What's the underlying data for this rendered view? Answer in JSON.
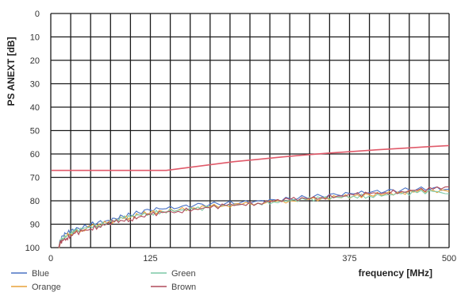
{
  "chart_data": {
    "type": "line",
    "title": "",
    "xlabel": "frequency [MHz]",
    "ylabel": "PS ANEXT [dB]",
    "xlim": [
      0,
      500
    ],
    "ylim": [
      0,
      100
    ],
    "y_inverted": true,
    "x_ticks": [
      0,
      125,
      375,
      500
    ],
    "y_ticks": [
      0,
      10,
      20,
      30,
      40,
      50,
      60,
      70,
      80,
      90,
      100
    ],
    "grid": true,
    "legend_position": "bottom-left",
    "limit_line": {
      "color": "#e05a6a",
      "x": [
        1,
        10,
        50,
        100,
        145,
        170,
        200,
        230,
        260,
        290,
        320,
        350,
        380,
        410,
        440,
        470,
        500
      ],
      "y": [
        67,
        67,
        67,
        67,
        67,
        65.9,
        64.6,
        63.3,
        62.3,
        61.3,
        60.4,
        59.6,
        58.9,
        58.2,
        57.6,
        57.0,
        56.4
      ]
    },
    "x": [
      10,
      12,
      15,
      20,
      25,
      30,
      40,
      50,
      60,
      70,
      80,
      90,
      100,
      110,
      125,
      140,
      160,
      180,
      200,
      220,
      240,
      260,
      280,
      300,
      320,
      340,
      360,
      380,
      400,
      420,
      440,
      460,
      480,
      500
    ],
    "series": [
      {
        "name": "Blue",
        "color": "#4a72c4",
        "values": [
          100,
          97,
          95,
          94,
          93,
          92.5,
          91.5,
          90,
          89,
          88.5,
          87.5,
          86.5,
          86,
          85,
          84,
          83.5,
          83,
          82,
          81.5,
          81,
          80.5,
          80,
          79.5,
          79,
          78.5,
          78,
          77.5,
          77,
          76.5,
          76,
          75.5,
          75,
          74.5,
          75
        ]
      },
      {
        "name": "Orange",
        "color": "#e8a23a",
        "values": [
          100,
          98,
          96,
          95,
          94,
          93.5,
          92.5,
          91,
          90,
          89.5,
          88.5,
          87.5,
          87,
          86,
          85,
          84.5,
          84,
          83,
          82.5,
          82,
          81.5,
          81,
          80.5,
          80,
          79.5,
          79,
          78.5,
          78,
          77.5,
          77,
          76.5,
          76,
          75.5,
          76
        ]
      },
      {
        "name": "Green",
        "color": "#7cc9a6",
        "values": [
          100,
          97,
          96,
          95,
          94,
          93,
          92,
          91,
          90.5,
          89.5,
          88.5,
          87.5,
          87,
          86,
          85.5,
          84.5,
          84,
          83.5,
          83,
          82,
          81.5,
          81,
          80.5,
          80,
          79.5,
          79,
          78.5,
          78,
          78,
          77.5,
          77,
          76.5,
          76,
          77
        ]
      },
      {
        "name": "Brown",
        "color": "#b04a5a",
        "values": [
          100,
          98,
          97,
          96,
          95,
          94,
          93,
          92,
          91,
          90,
          89,
          88.5,
          88,
          87,
          86,
          85,
          84.5,
          83.5,
          83,
          82,
          81.5,
          81,
          80,
          79.5,
          79,
          78.5,
          78,
          77.5,
          77,
          76.5,
          76,
          75.5,
          75,
          74
        ]
      }
    ]
  }
}
